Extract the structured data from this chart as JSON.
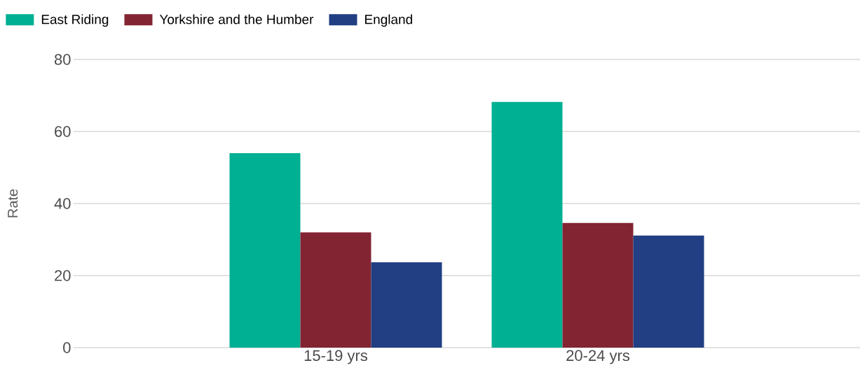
{
  "chart_data": {
    "type": "bar",
    "ylabel": "Rate",
    "categories": [
      "15-19 yrs",
      "20-24 yrs"
    ],
    "series": [
      {
        "name": "East Riding",
        "color": "#00b092",
        "values": [
          54.0,
          68.2
        ]
      },
      {
        "name": "Yorkshire and the Humber",
        "color": "#832433",
        "values": [
          32.0,
          34.6
        ]
      },
      {
        "name": "England",
        "color": "#213f82",
        "values": [
          23.7,
          31.1
        ]
      }
    ],
    "ylim": [
      0,
      80
    ],
    "yticks": [
      0,
      20,
      40,
      60,
      80
    ],
    "grid": "y",
    "legend": "top left"
  }
}
